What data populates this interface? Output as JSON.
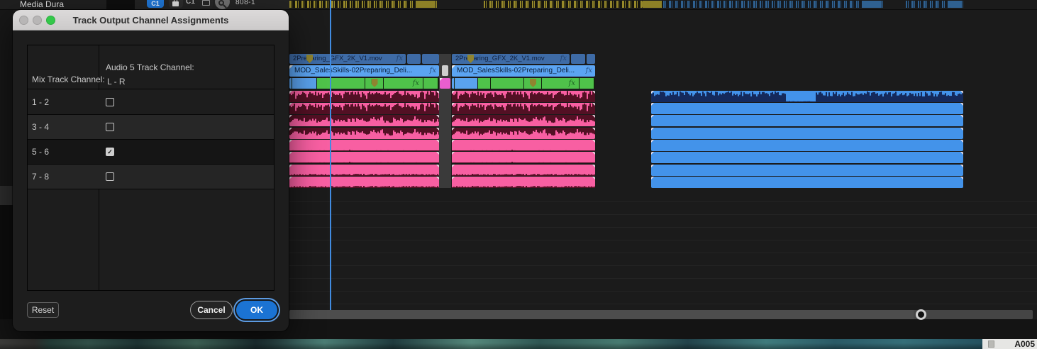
{
  "dialog": {
    "title": "Track Output Channel Assignments",
    "table": {
      "mix_header": "Mix Track Channel:",
      "track_header_line1": "Audio 5 Track Channel:",
      "track_header_line2": "L - R",
      "rows": [
        {
          "label": "1 - 2",
          "checked": false
        },
        {
          "label": "3 - 4",
          "checked": false
        },
        {
          "label": "5 - 6",
          "checked": true
        },
        {
          "label": "7 - 8",
          "checked": false
        }
      ]
    },
    "buttons": {
      "reset": "Reset",
      "cancel": "Cancel",
      "ok": "OK"
    }
  },
  "project_panel": {
    "media_duration_column": "Media Dura"
  },
  "toolbar": {
    "badge1": "C1",
    "badge2": "C1",
    "value": "808-1"
  },
  "timeline": {
    "v3_clip_name": "2Preparing_GFX_2K_V1.mov",
    "v2_clip_name": "MOD_SalesSkills-02Preparing_Deli...",
    "fx_badge": "fx"
  },
  "film_strip": {
    "reel_label": "A005"
  },
  "icons": {
    "checkbox_check": "✓",
    "traffic_lights": [
      "close",
      "minimize",
      "zoom"
    ],
    "lock": "padlock-shape",
    "magnifier": "magnifier-shape",
    "clip_marker": "olive-shield-marker"
  },
  "colors": {
    "accent_blue": "#1b73d3",
    "clip_green": "#4fc24a",
    "clip_blue_dark": "#3e6ba6",
    "clip_blue_light": "#5ba4f2",
    "audio_pink": "#f85fa2",
    "audio_blue": "#4393ea",
    "playhead": "#418be0",
    "marker_olive": "#8f8430",
    "dialog_titlebar": "#d4d2d2"
  }
}
